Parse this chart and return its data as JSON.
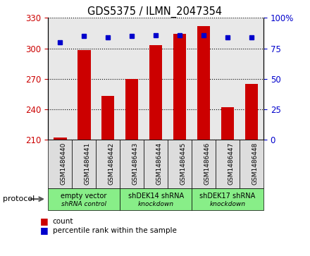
{
  "title": "GDS5375 / ILMN_2047354",
  "samples": [
    "GSM1486440",
    "GSM1486441",
    "GSM1486442",
    "GSM1486443",
    "GSM1486444",
    "GSM1486445",
    "GSM1486446",
    "GSM1486447",
    "GSM1486448"
  ],
  "counts": [
    212,
    298,
    253,
    270,
    303,
    314,
    322,
    242,
    265
  ],
  "percentile_ranks": [
    80,
    85,
    84,
    85,
    86,
    86,
    86,
    84,
    84
  ],
  "ylim_left": [
    210,
    330
  ],
  "ylim_right": [
    0,
    100
  ],
  "yticks_left": [
    210,
    240,
    270,
    300,
    330
  ],
  "yticks_right": [
    0,
    25,
    50,
    75,
    100
  ],
  "bar_color": "#cc0000",
  "dot_color": "#0000cc",
  "bar_bottom": 210,
  "group_texts": [
    "empty vector\nshRNA control",
    "shDEK14 shRNA\nknockdown",
    "shDEK17 shRNA\nknockdown"
  ],
  "group_starts": [
    0,
    3,
    6
  ],
  "group_ends": [
    3,
    6,
    9
  ],
  "group_color": "#88ee88",
  "sample_cell_color": "#dddddd",
  "legend_count_label": "count",
  "legend_pct_label": "percentile rank within the sample",
  "protocol_label": "protocol",
  "bg_color": "#ffffff",
  "plot_bg_color": "#e8e8e8",
  "tick_label_color_left": "#cc0000",
  "tick_label_color_right": "#0000cc"
}
